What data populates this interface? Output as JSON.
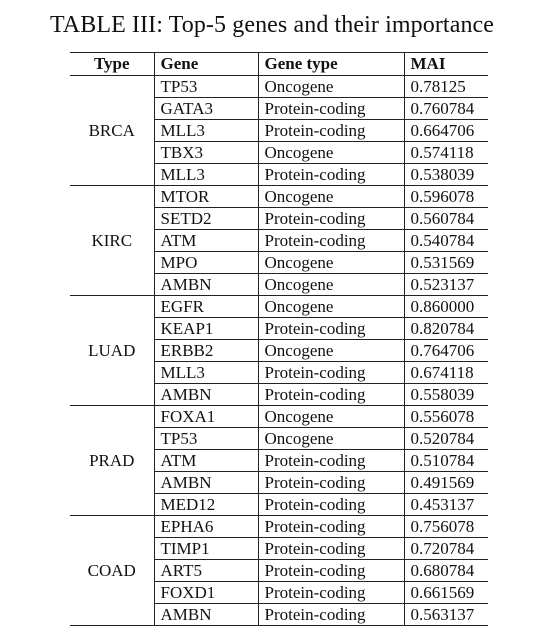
{
  "caption": "TABLE III: Top-5 genes and their importance",
  "headers": {
    "type": "Type",
    "gene": "Gene",
    "gene_type": "Gene type",
    "mai": "MAI"
  },
  "groups": [
    {
      "type": "BRCA",
      "rows": [
        {
          "gene": "TP53",
          "gene_type": "Oncogene",
          "mai": "0.78125"
        },
        {
          "gene": "GATA3",
          "gene_type": "Protein-coding",
          "mai": "0.760784"
        },
        {
          "gene": "MLL3",
          "gene_type": "Protein-coding",
          "mai": "0.664706"
        },
        {
          "gene": "TBX3",
          "gene_type": "Oncogene",
          "mai": "0.574118"
        },
        {
          "gene": "MLL3",
          "gene_type": "Protein-coding",
          "mai": "0.538039"
        }
      ]
    },
    {
      "type": "KIRC",
      "rows": [
        {
          "gene": "MTOR",
          "gene_type": "Oncogene",
          "mai": "0.596078"
        },
        {
          "gene": "SETD2",
          "gene_type": "Protein-coding",
          "mai": "0.560784"
        },
        {
          "gene": "ATM",
          "gene_type": "Protein-coding",
          "mai": "0.540784"
        },
        {
          "gene": "MPO",
          "gene_type": "Oncogene",
          "mai": "0.531569"
        },
        {
          "gene": "AMBN",
          "gene_type": "Oncogene",
          "mai": "0.523137"
        }
      ]
    },
    {
      "type": "LUAD",
      "rows": [
        {
          "gene": "EGFR",
          "gene_type": "Oncogene",
          "mai": "0.860000"
        },
        {
          "gene": "KEAP1",
          "gene_type": "Protein-coding",
          "mai": "0.820784"
        },
        {
          "gene": "ERBB2",
          "gene_type": "Oncogene",
          "mai": "0.764706"
        },
        {
          "gene": "MLL3",
          "gene_type": "Protein-coding",
          "mai": "0.674118"
        },
        {
          "gene": "AMBN",
          "gene_type": "Protein-coding",
          "mai": "0.558039"
        }
      ]
    },
    {
      "type": "PRAD",
      "rows": [
        {
          "gene": "FOXA1",
          "gene_type": "Oncogene",
          "mai": "0.556078"
        },
        {
          "gene": "TP53",
          "gene_type": "Oncogene",
          "mai": "0.520784"
        },
        {
          "gene": "ATM",
          "gene_type": "Protein-coding",
          "mai": "0.510784"
        },
        {
          "gene": "AMBN",
          "gene_type": "Protein-coding",
          "mai": "0.491569"
        },
        {
          "gene": "MED12",
          "gene_type": "Protein-coding",
          "mai": "0.453137"
        }
      ]
    },
    {
      "type": "COAD",
      "rows": [
        {
          "gene": "EPHA6",
          "gene_type": "Protein-coding",
          "mai": "0.756078"
        },
        {
          "gene": "TIMP1",
          "gene_type": "Protein-coding",
          "mai": "0.720784"
        },
        {
          "gene": "ART5",
          "gene_type": "Protein-coding",
          "mai": "0.680784"
        },
        {
          "gene": "FOXD1",
          "gene_type": "Protein-coding",
          "mai": "0.661569"
        },
        {
          "gene": "AMBN",
          "gene_type": "Protein-coding",
          "mai": "0.563137"
        }
      ]
    }
  ]
}
